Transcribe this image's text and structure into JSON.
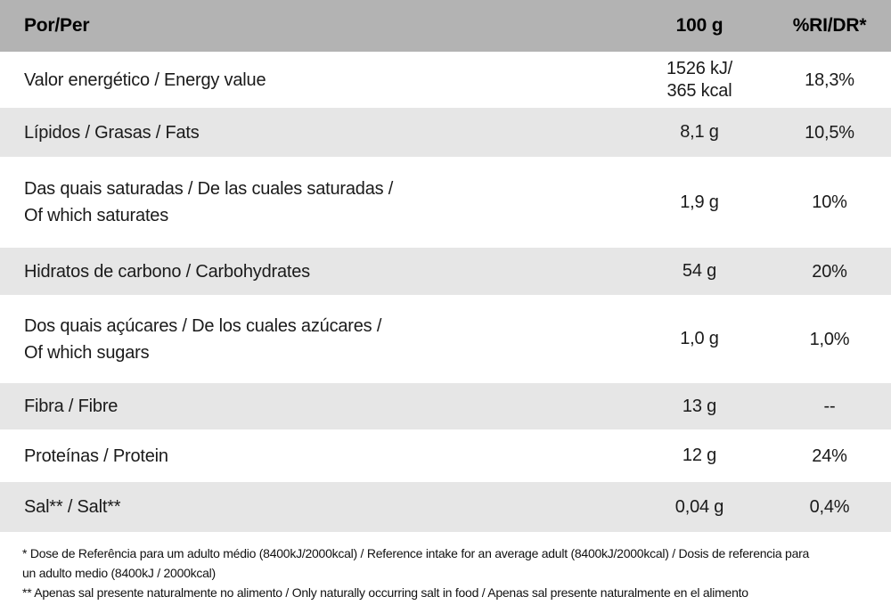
{
  "table": {
    "header": {
      "per": "Por/Per",
      "amount": "100 g",
      "ri": "%RI/DR*"
    },
    "rows": [
      {
        "label": "Valor energético / Energy value",
        "amount": "1526 kJ/\n365 kcal",
        "ri": "18,3%"
      },
      {
        "label": "Lípidos / Grasas / Fats",
        "amount": "8,1 g",
        "ri": "10,5%"
      },
      {
        "label": "Das quais saturadas / De las cuales saturadas /\nOf which saturates",
        "amount": "1,9 g",
        "ri": "10%"
      },
      {
        "label": "Hidratos de carbono / Carbohydrates",
        "amount": "54 g",
        "ri": "20%"
      },
      {
        "label": "Dos quais açúcares / De los cuales azúcares /\nOf which sugars",
        "amount": "1,0 g",
        "ri": "1,0%"
      },
      {
        "label": "Fibra / Fibre",
        "amount": "13 g",
        "ri": "--"
      },
      {
        "label": "Proteínas / Protein",
        "amount": "12 g",
        "ri": "24%"
      },
      {
        "label": "Sal** / Salt**",
        "amount": "0,04 g",
        "ri": "0,4%"
      }
    ]
  },
  "footnotes": [
    {
      "lines": [
        "* Dose de Referência para um adulto médio (8400kJ/2000kcal) / Reference intake for an average adult (8400kJ/2000kcal) / Dosis de referencia para",
        "un adulto medio (8400kJ / 2000kcal)"
      ]
    },
    {
      "lines": [
        "** Apenas sal presente naturalmente no alimento / Only naturally occurring salt in food / Apenas sal presente naturalmente en el alimento"
      ]
    }
  ],
  "colors": {
    "header_bg": "#b3b3b3",
    "row_shade_bg": "#e6e6e6",
    "text": "#1a1a1a"
  }
}
